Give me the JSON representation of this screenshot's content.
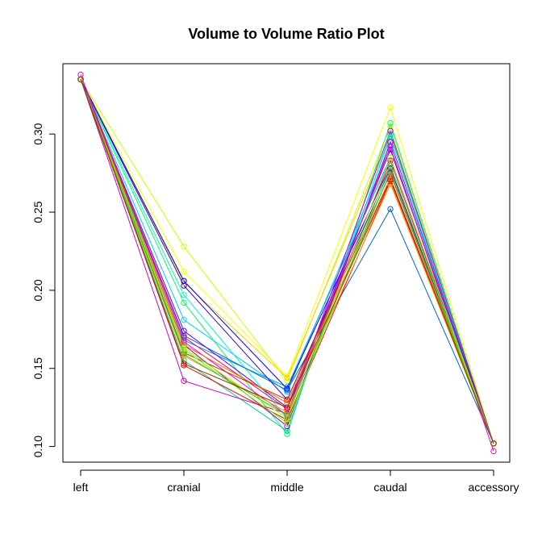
{
  "chart_data": {
    "type": "line",
    "title": "Volume to Volume Ratio Plot",
    "xlabel": "",
    "ylabel": "",
    "categories": [
      "left",
      "cranial",
      "middle",
      "caudal",
      "accessory"
    ],
    "y_ticks": [
      "0.10",
      "0.15",
      "0.20",
      "0.25",
      "0.30"
    ],
    "ylim": [
      0.09,
      0.345
    ],
    "grid": false,
    "legend": "none",
    "markers": "open-circle",
    "series": [
      {
        "color": "#FFFF00",
        "values": [
          0.335,
          0.212,
          0.145,
          0.317,
          0.102
        ]
      },
      {
        "color": "#CCFF00",
        "values": [
          0.335,
          0.228,
          0.142,
          0.305,
          0.102
        ]
      },
      {
        "color": "#FFCC00",
        "values": [
          0.335,
          0.205,
          0.144,
          0.3,
          0.102
        ]
      },
      {
        "color": "#00FF66",
        "values": [
          0.335,
          0.192,
          0.108,
          0.307,
          0.102
        ]
      },
      {
        "color": "#00CC99",
        "values": [
          0.335,
          0.155,
          0.11,
          0.3,
          0.102
        ]
      },
      {
        "color": "#00FFCC",
        "values": [
          0.335,
          0.197,
          0.118,
          0.298,
          0.102
        ]
      },
      {
        "color": "#00CCFF",
        "values": [
          0.335,
          0.181,
          0.135,
          0.292,
          0.102
        ]
      },
      {
        "color": "#0099FF",
        "values": [
          0.335,
          0.168,
          0.138,
          0.285,
          0.102
        ]
      },
      {
        "color": "#0066CC",
        "values": [
          0.335,
          0.171,
          0.136,
          0.252,
          0.102
        ]
      },
      {
        "color": "#0000FF",
        "values": [
          0.335,
          0.206,
          0.137,
          0.28,
          0.102
        ]
      },
      {
        "color": "#3300CC",
        "values": [
          0.335,
          0.203,
          0.13,
          0.278,
          0.102
        ]
      },
      {
        "color": "#6600FF",
        "values": [
          0.335,
          0.174,
          0.125,
          0.29,
          0.102
        ]
      },
      {
        "color": "#9900CC",
        "values": [
          0.335,
          0.165,
          0.113,
          0.295,
          0.102
        ]
      },
      {
        "color": "#CC00CC",
        "values": [
          0.335,
          0.142,
          0.121,
          0.302,
          0.102
        ]
      },
      {
        "color": "#FF00CC",
        "values": [
          0.338,
          0.167,
          0.12,
          0.292,
          0.097
        ]
      },
      {
        "color": "#FF0066",
        "values": [
          0.335,
          0.17,
          0.124,
          0.283,
          0.102
        ]
      },
      {
        "color": "#FF0000",
        "values": [
          0.335,
          0.152,
          0.117,
          0.27,
          0.102
        ]
      },
      {
        "color": "#CC3300",
        "values": [
          0.335,
          0.16,
          0.13,
          0.275,
          0.102
        ]
      },
      {
        "color": "#FF6600",
        "values": [
          0.335,
          0.165,
          0.128,
          0.272,
          0.102
        ]
      },
      {
        "color": "#FF9900",
        "values": [
          0.335,
          0.158,
          0.122,
          0.268,
          0.102
        ]
      },
      {
        "color": "#99FF00",
        "values": [
          0.335,
          0.163,
          0.118,
          0.285,
          0.102
        ]
      },
      {
        "color": "#66FF00",
        "values": [
          0.335,
          0.162,
          0.115,
          0.28,
          0.102
        ]
      },
      {
        "color": "#33CC33",
        "values": [
          0.335,
          0.159,
          0.12,
          0.276,
          0.102
        ]
      },
      {
        "color": "#993300",
        "values": [
          0.335,
          0.153,
          0.125,
          0.271,
          0.102
        ]
      }
    ]
  }
}
